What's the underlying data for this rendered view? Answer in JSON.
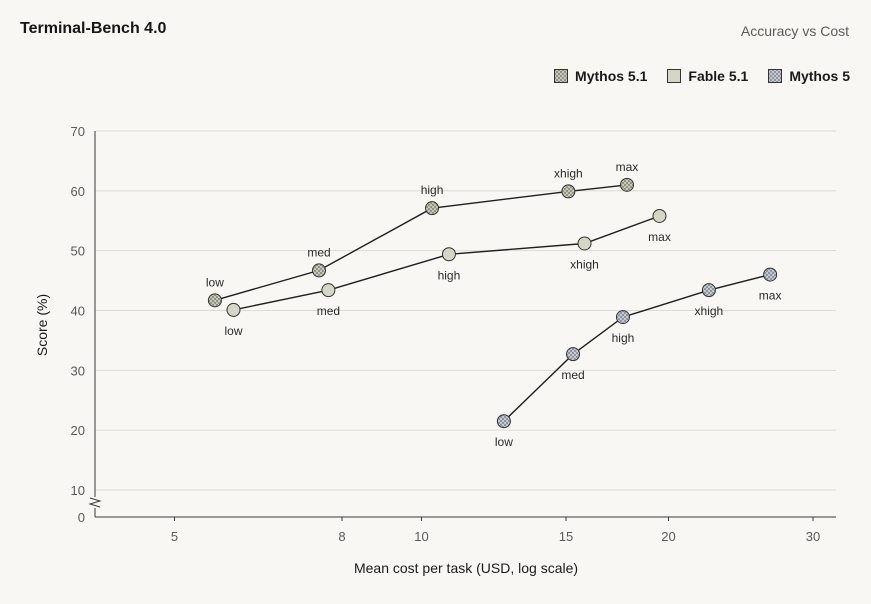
{
  "chart_data": {
    "type": "line",
    "title": "Terminal-Bench 4.0",
    "subtitle": "Accuracy vs Cost",
    "xlabel": "Mean cost per task (USD, log scale)",
    "ylabel": "Score (%)",
    "x_scale": "log",
    "xlim": [
      4,
      32
    ],
    "ylim": [
      0,
      70
    ],
    "y_axis_break": true,
    "x_ticks": [
      5,
      8,
      10,
      15,
      20,
      30
    ],
    "y_ticks": [
      0,
      10,
      20,
      30,
      40,
      50,
      60,
      70
    ],
    "grid": "horizontal",
    "legend_position": "top-right",
    "series": [
      {
        "name": "Mythos 5.1",
        "color": "#c5c9b3",
        "pattern": "checker",
        "points": [
          {
            "x": 5.6,
            "y": 41.7,
            "label": "low",
            "label_pos": "above"
          },
          {
            "x": 7.5,
            "y": 46.7,
            "label": "med",
            "label_pos": "above"
          },
          {
            "x": 10.3,
            "y": 57.1,
            "label": "high",
            "label_pos": "above"
          },
          {
            "x": 15.1,
            "y": 59.9,
            "label": "xhigh",
            "label_pos": "above"
          },
          {
            "x": 17.8,
            "y": 61.0,
            "label": "max",
            "label_pos": "above"
          }
        ]
      },
      {
        "name": "Fable 5.1",
        "color": "#d4d7c3",
        "pattern": "solid",
        "points": [
          {
            "x": 5.9,
            "y": 40.1,
            "label": "low",
            "label_pos": "below"
          },
          {
            "x": 7.7,
            "y": 43.4,
            "label": "med",
            "label_pos": "below"
          },
          {
            "x": 10.8,
            "y": 49.4,
            "label": "high",
            "label_pos": "below"
          },
          {
            "x": 15.8,
            "y": 51.2,
            "label": "xhigh",
            "label_pos": "below"
          },
          {
            "x": 19.5,
            "y": 55.8,
            "label": "max",
            "label_pos": "below"
          }
        ]
      },
      {
        "name": "Mythos 5",
        "color": "#c3c8d6",
        "pattern": "checker",
        "points": [
          {
            "x": 12.6,
            "y": 21.5,
            "label": "low",
            "label_pos": "below"
          },
          {
            "x": 15.3,
            "y": 32.7,
            "label": "med",
            "label_pos": "below"
          },
          {
            "x": 17.6,
            "y": 38.9,
            "label": "high",
            "label_pos": "below"
          },
          {
            "x": 22.4,
            "y": 43.4,
            "label": "xhigh",
            "label_pos": "below"
          },
          {
            "x": 26.6,
            "y": 46.0,
            "label": "max",
            "label_pos": "below"
          }
        ]
      }
    ]
  }
}
